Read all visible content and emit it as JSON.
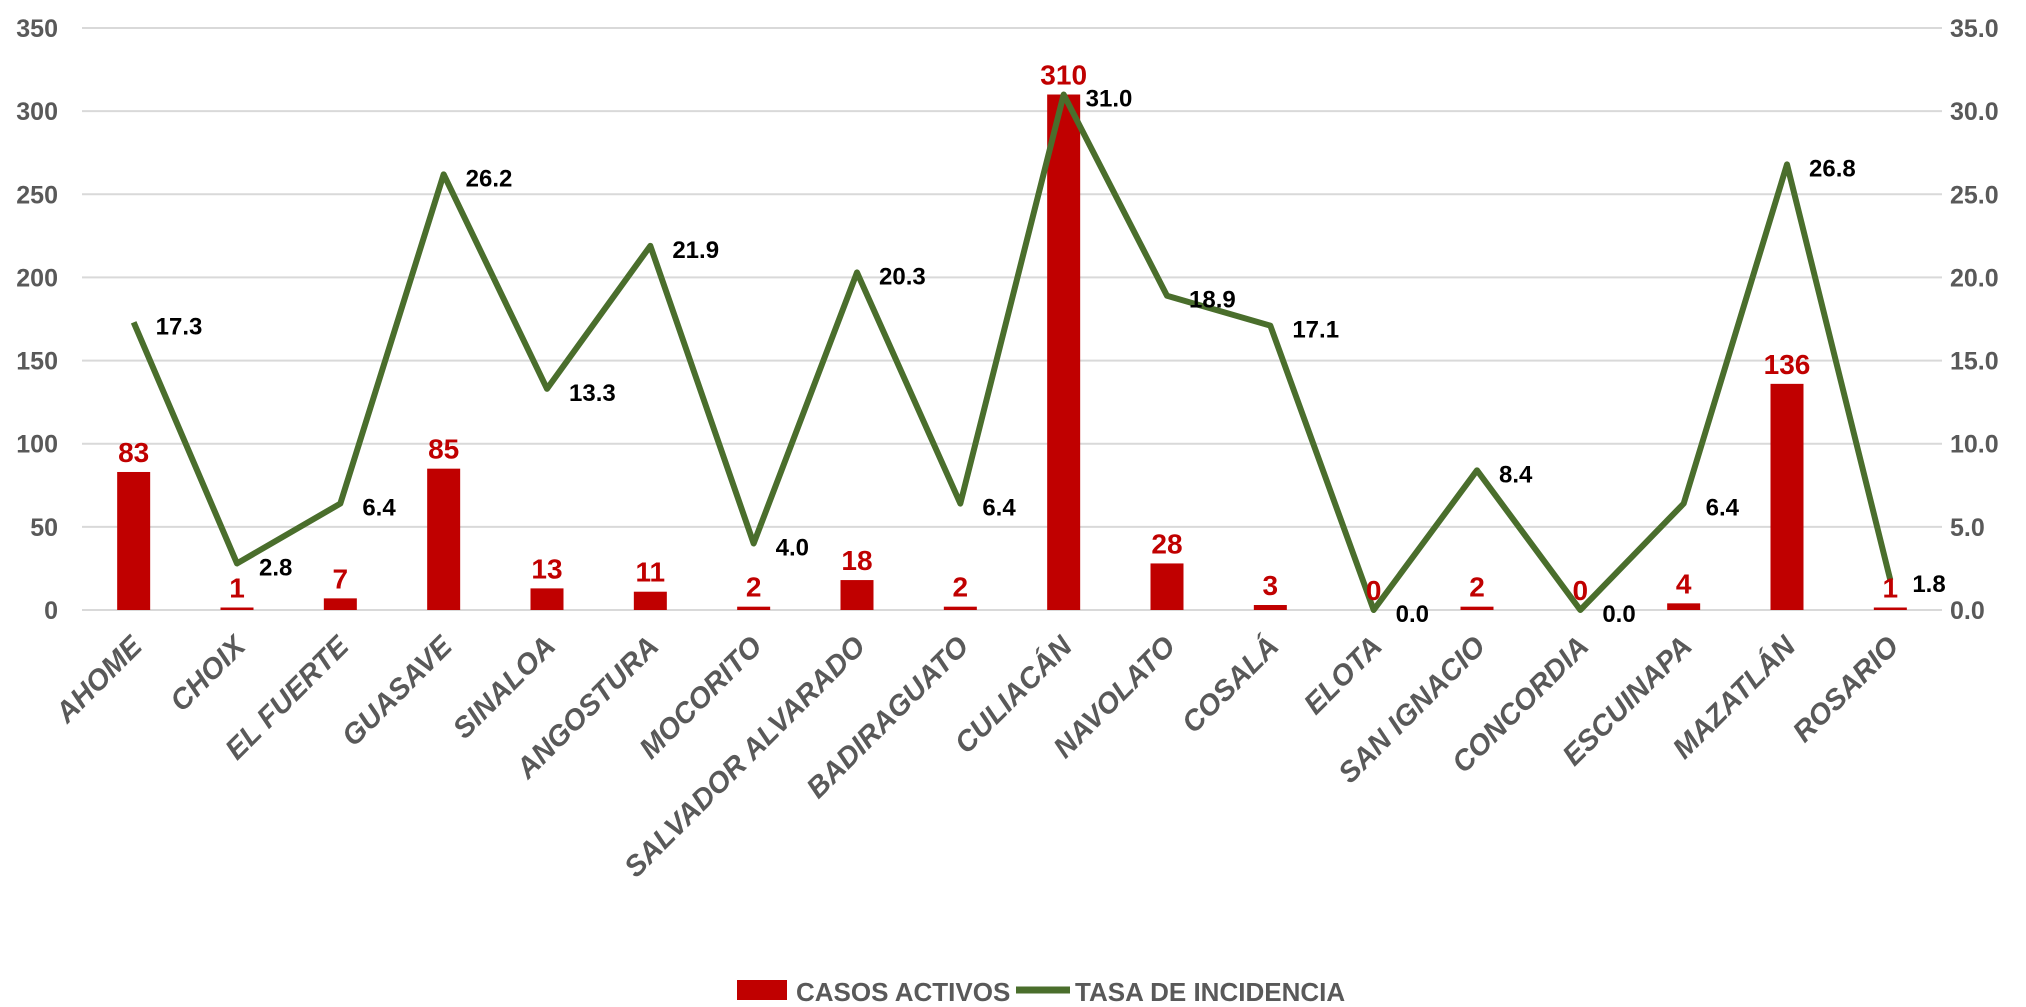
{
  "chart_data": {
    "type": "bar+line",
    "categories": [
      "AHOME",
      "CHOIX",
      "EL FUERTE",
      "GUASAVE",
      "SINALOA",
      "ANGOSTURA",
      "MOCORITO",
      "SALVADOR ALVARADO",
      "BADIRAGUATO",
      "CULIACÁN",
      "NAVOLATO",
      "COSALÁ",
      "ELOTA",
      "SAN IGNACIO",
      "CONCORDIA",
      "ESCUINAPA",
      "MAZATLÁN",
      "ROSARIO"
    ],
    "series": [
      {
        "name": "CASOS ACTIVOS",
        "type": "bar",
        "axis": "left",
        "color": "#c00000",
        "values": [
          83,
          1,
          7,
          85,
          13,
          11,
          2,
          18,
          2,
          310,
          28,
          3,
          0,
          2,
          0,
          4,
          136,
          1
        ],
        "labels": [
          "83",
          "1",
          "7",
          "85",
          "13",
          "11",
          "2",
          "18",
          "2",
          "310",
          "28",
          "3",
          "0",
          "2",
          "0",
          "4",
          "136",
          "1"
        ]
      },
      {
        "name": "TASA DE INCIDENCIA",
        "type": "line",
        "axis": "right",
        "color": "#4a6e2c",
        "values": [
          17.3,
          2.8,
          6.4,
          26.2,
          13.3,
          21.9,
          4.0,
          20.3,
          6.4,
          31.0,
          18.9,
          17.1,
          0.0,
          8.4,
          0.0,
          6.4,
          26.8,
          1.8
        ],
        "labels": [
          "17.3",
          "2.8",
          "6.4",
          "26.2",
          "13.3",
          "21.9",
          "4.0",
          "20.3",
          "6.4",
          "31.0",
          "18.9",
          "17.1",
          "0.0",
          "8.4",
          "0.0",
          "6.4",
          "26.8",
          "1.8"
        ]
      }
    ],
    "y_left": {
      "min": 0,
      "max": 350,
      "ticks": [
        "0",
        "50",
        "100",
        "150",
        "200",
        "250",
        "300",
        "350"
      ]
    },
    "y_right": {
      "min": 0,
      "max": 35,
      "ticks": [
        "0.0",
        "5.0",
        "10.0",
        "15.0",
        "20.0",
        "25.0",
        "30.0",
        "35.0"
      ]
    },
    "grid": true,
    "legend_position": "bottom-center",
    "title": "",
    "xlabel": "",
    "ylabel": ""
  }
}
